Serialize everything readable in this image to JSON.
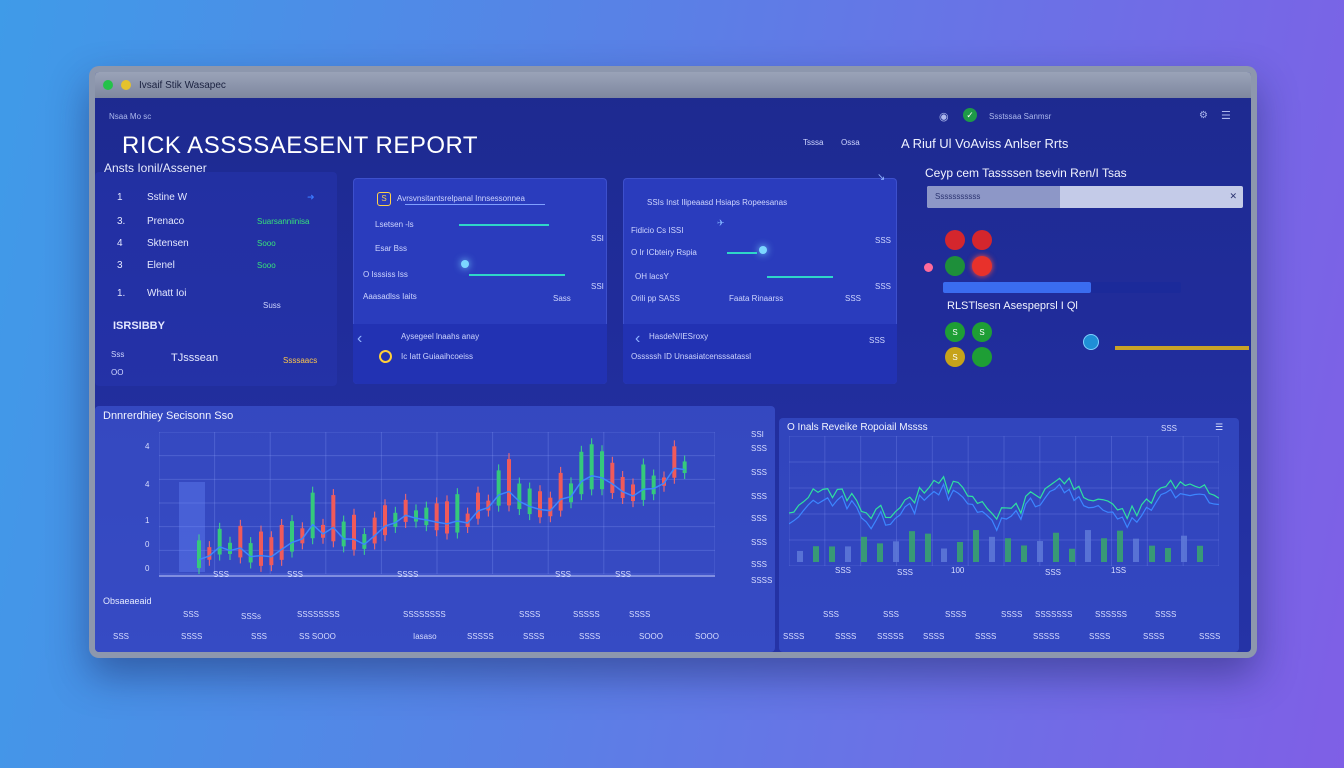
{
  "window": {
    "title": "Ivsaif Stik Wasapec"
  },
  "header": {
    "left_small": "Nsaa Mo sc",
    "title": "RICK ASSSSAESENT REPORT",
    "subtitle": "Ansts Ionil/Assener",
    "center_small_1": "Tsssa",
    "center_small_2": "Ossa",
    "right_title": "A Riuf Ul VoAviss Anlser Rrts",
    "top_right_text": "Ssstssaa Sanmsr"
  },
  "left_list": {
    "items": [
      {
        "num": "1",
        "label": "Sstine W",
        "value": ""
      },
      {
        "num": "3.",
        "label": "Prenaco",
        "value": "Suarsanniinisa"
      },
      {
        "num": "4",
        "label": "Sktensen",
        "value": "Sooo"
      },
      {
        "num": "3",
        "label": "Elenel",
        "value": "Sooo"
      },
      {
        "num": "1.",
        "label": "Whatt Ioi",
        "value": "Suss"
      }
    ],
    "block_label": "ISRSIBBY",
    "bottom_label": "TJsssean",
    "bottom_nums": [
      "Sss",
      "OO"
    ],
    "bottom_value": "Ssssaacs"
  },
  "card_a": {
    "heading": "Avrsvnsitantsrelpanal Innsessonnea",
    "rows": [
      {
        "label": "Lsetsen -ls",
        "value": ""
      },
      {
        "label": "Esar Bss",
        "value": "SSI"
      },
      {
        "label": "O Isssiss Iss",
        "value": ""
      },
      {
        "label": "Aaasadlss Iaits",
        "value": "Sass"
      }
    ],
    "side_value_1": "SSI",
    "side_value_2": "SSI",
    "bottom_1": "Aysegeel lnaahs anay",
    "bottom_2": "Ic Iatt Guiaaihcoeiss"
  },
  "card_b": {
    "heading": "SSIs Inst Ilipeaasd Hsiaps Ropeesanas",
    "rows": [
      {
        "label": "Fidicio Cs ISSI",
        "value": ""
      },
      {
        "label": "O Ir ICbteiry Rspia",
        "value": ""
      },
      {
        "label": "OH lacsY",
        "value": ""
      },
      {
        "label": "Orili pp SASS",
        "value": "Faata Rinaarss"
      }
    ],
    "side_values": [
      "SSS",
      "SSS",
      "SSS"
    ],
    "bottom_1": "HasdeN/IESroxy",
    "bottom_2": "Osssssh ID Unsasiatcensssatassl",
    "bottom_value": "SSS"
  },
  "right_panel": {
    "heading": "Ceyp cem Tassssen tsevin Ren/I Tsas",
    "progress_label_left": "Sssssssssss",
    "progress": 0.42,
    "rls_label": "RLSTlsesn Asespeprsl I Ql",
    "bar2_fill": 0.62,
    "status_dots": [
      {
        "color": "#d4262d",
        "label": ""
      },
      {
        "color": "#d4262d",
        "label": ""
      },
      {
        "color": "#1e8f3a",
        "label": ""
      },
      {
        "color": "#e8312b",
        "label": ""
      }
    ],
    "status_dots_2": [
      {
        "color": "#1e9e35",
        "label": "S"
      },
      {
        "color": "#1e9e35",
        "label": "S"
      },
      {
        "color": "#c6a31a",
        "label": "S"
      },
      {
        "color": "#1e9e35",
        "label": ""
      }
    ],
    "gold_line_color": "#c9a227",
    "accent_blue": "#3a6cf0"
  },
  "chart_left": {
    "title": "Dnnrerdhiey Secisonn Sso",
    "y_ticks": [
      "4",
      "4",
      "1",
      "0",
      "0"
    ],
    "right_axis": [
      "SSI",
      "SSS",
      "SSS",
      "SSS",
      "SSS",
      "SSS",
      "SSS",
      "SSSS"
    ],
    "x_ticks": [
      "SSS",
      "SSS",
      "SSSS",
      "SSS",
      "SSS"
    ],
    "foot_label": "Obsaeaeaid",
    "footer_row_1": [
      "SSS",
      "SSSs",
      "SSSSSSSS",
      "SSSSSSSS",
      "SSSS",
      "SSSSS",
      "SSSS"
    ],
    "footer_row_2": [
      "SSS",
      "SSSS",
      "SSS",
      "SS SOOO",
      "Iasaso",
      "SSSSS",
      "SSSS",
      "SSSS",
      "SOOO",
      "SOOO"
    ]
  },
  "chart_right": {
    "title": "O Inals Reveike Ropoiail Mssss",
    "x_ticks": [
      "SSS",
      "SSS",
      "100",
      "SSS",
      "1SS"
    ],
    "footer_row_1": [
      "SSS",
      "SSS",
      "SSSS",
      "SSSS",
      "SSSSSSS",
      "SSSSSS",
      "SSSS"
    ],
    "footer_row_2": [
      "SSSS",
      "SSSS",
      "SSSSS",
      "SSSS",
      "SSSS",
      "SSSSS",
      "SSSS",
      "SSSS",
      "SSSS"
    ],
    "top_right": "SSS"
  }
}
